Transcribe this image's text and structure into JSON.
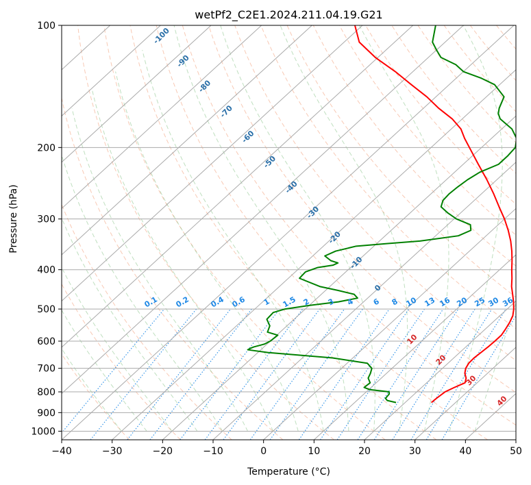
{
  "chart_data": {
    "type": "skew-t",
    "title": "wetPf2_C2E1.2024.211.04.19.G21",
    "xlabel": "Temperature (°C)",
    "ylabel": "Pressure (hPa)",
    "xlim": [
      -40,
      50
    ],
    "ylim": [
      1050,
      100
    ],
    "x_ticks": [
      -40,
      -30,
      -20,
      -10,
      0,
      10,
      20,
      30,
      40,
      50
    ],
    "y_ticks": [
      100,
      200,
      300,
      400,
      500,
      600,
      700,
      800,
      900,
      1000
    ],
    "grid": true,
    "series": [
      {
        "name": "temperature",
        "color": "#ff0000",
        "points": [
          [
            850,
            25.2
          ],
          [
            830,
            25.3
          ],
          [
            800,
            25.6
          ],
          [
            780,
            26.5
          ],
          [
            760,
            27.6
          ],
          [
            740,
            26.8
          ],
          [
            720,
            25.5
          ],
          [
            700,
            24.6
          ],
          [
            680,
            24.1
          ],
          [
            660,
            24.0
          ],
          [
            640,
            24.2
          ],
          [
            620,
            24.4
          ],
          [
            600,
            24.5
          ],
          [
            580,
            24.5
          ],
          [
            560,
            24.0
          ],
          [
            540,
            23.4
          ],
          [
            520,
            22.6
          ],
          [
            500,
            21.3
          ],
          [
            480,
            19.7
          ],
          [
            460,
            17.9
          ],
          [
            440,
            16.0
          ],
          [
            420,
            14.3
          ],
          [
            400,
            12.4
          ],
          [
            380,
            10.5
          ],
          [
            360,
            8.4
          ],
          [
            340,
            6.0
          ],
          [
            320,
            3.2
          ],
          [
            300,
            0.0
          ],
          [
            280,
            -3.7
          ],
          [
            260,
            -7.6
          ],
          [
            240,
            -12.0
          ],
          [
            220,
            -17.0
          ],
          [
            200,
            -22.4
          ],
          [
            190,
            -25.3
          ],
          [
            180,
            -28.1
          ],
          [
            170,
            -32.0
          ],
          [
            160,
            -37.0
          ],
          [
            150,
            -41.8
          ],
          [
            140,
            -47.5
          ],
          [
            130,
            -53.5
          ],
          [
            120,
            -60.5
          ],
          [
            110,
            -67.0
          ],
          [
            100,
            -71.5
          ]
        ]
      },
      {
        "name": "dewpoint",
        "color": "#008000",
        "points": [
          [
            850,
            18.2
          ],
          [
            840,
            16.0
          ],
          [
            830,
            15.2
          ],
          [
            810,
            15.0
          ],
          [
            800,
            14.5
          ],
          [
            790,
            10.2
          ],
          [
            780,
            8.6
          ],
          [
            760,
            8.8
          ],
          [
            740,
            7.4
          ],
          [
            720,
            6.8
          ],
          [
            700,
            6.0
          ],
          [
            680,
            4.0
          ],
          [
            660,
            -4.0
          ],
          [
            640,
            -18.0
          ],
          [
            630,
            -22.6
          ],
          [
            625,
            -22.4
          ],
          [
            620,
            -22.0
          ],
          [
            610,
            -20.5
          ],
          [
            600,
            -20.0
          ],
          [
            580,
            -19.8
          ],
          [
            570,
            -22.5
          ],
          [
            550,
            -23.4
          ],
          [
            530,
            -25.4
          ],
          [
            510,
            -25.6
          ],
          [
            500,
            -24.0
          ],
          [
            490,
            -20.0
          ],
          [
            480,
            -15.0
          ],
          [
            470,
            -12.0
          ],
          [
            460,
            -13.5
          ],
          [
            450,
            -17.5
          ],
          [
            440,
            -22.0
          ],
          [
            420,
            -27.8
          ],
          [
            405,
            -28.0
          ],
          [
            395,
            -26.5
          ],
          [
            390,
            -24.0
          ],
          [
            385,
            -23.5
          ],
          [
            380,
            -25.4
          ],
          [
            370,
            -27.6
          ],
          [
            360,
            -26.5
          ],
          [
            350,
            -23.5
          ],
          [
            345,
            -18.0
          ],
          [
            340,
            -12.0
          ],
          [
            330,
            -5.5
          ],
          [
            320,
            -4.2
          ],
          [
            310,
            -5.5
          ],
          [
            300,
            -9.5
          ],
          [
            290,
            -12.5
          ],
          [
            280,
            -15.2
          ],
          [
            270,
            -16.2
          ],
          [
            260,
            -16.4
          ],
          [
            250,
            -16.2
          ],
          [
            240,
            -15.8
          ],
          [
            230,
            -15.0
          ],
          [
            220,
            -13.0
          ],
          [
            210,
            -13.0
          ],
          [
            200,
            -13.3
          ],
          [
            190,
            -15.0
          ],
          [
            180,
            -18.0
          ],
          [
            170,
            -22.5
          ],
          [
            165,
            -24.0
          ],
          [
            160,
            -25.0
          ],
          [
            150,
            -26.5
          ],
          [
            140,
            -31.0
          ],
          [
            135,
            -35.0
          ],
          [
            130,
            -40.0
          ],
          [
            125,
            -43.0
          ],
          [
            120,
            -47.5
          ],
          [
            115,
            -50.0
          ],
          [
            110,
            -52.5
          ],
          [
            100,
            -55.5
          ]
        ]
      }
    ],
    "dry_adiabat_labels": [
      -100,
      -90,
      -80,
      -70,
      -60,
      -50,
      -40,
      -30,
      -20,
      -10,
      0
    ],
    "moist_adiabat_labels": [
      10,
      20,
      30,
      40
    ],
    "mixing_ratio_labels": [
      "0.1",
      "0.2",
      "0.4",
      "0.6",
      "1",
      "1.5",
      "2",
      "3",
      "4",
      "6",
      "8",
      "10",
      "13",
      "16",
      "20",
      "25",
      "30",
      "36"
    ]
  }
}
